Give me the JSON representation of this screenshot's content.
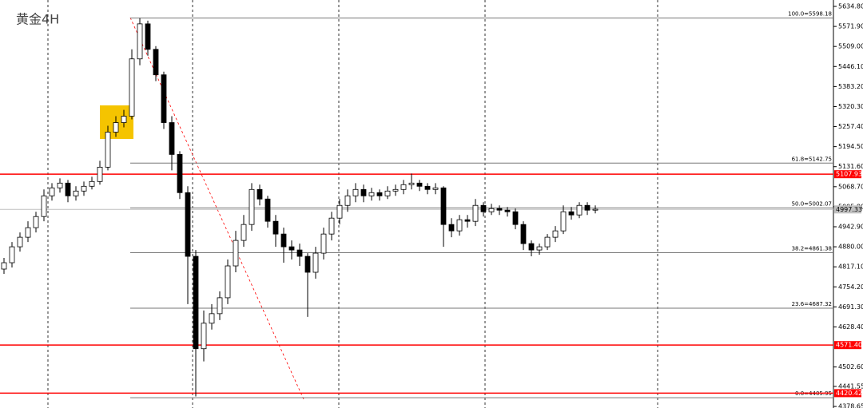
{
  "chart_data": {
    "type": "candlestick",
    "title": "黄金4H",
    "up_color": "#ffffff",
    "down_color": "#000000",
    "ylim": [
      4373.8,
      5654.9
    ],
    "yticks": [
      {
        "value": 5634.8,
        "label": "5634.80"
      },
      {
        "value": 5571.9,
        "label": "5571.90"
      },
      {
        "value": 5509,
        "label": "5509.00"
      },
      {
        "value": 5446.1,
        "label": "5446.10"
      },
      {
        "value": 5383.2,
        "label": "5383.20"
      },
      {
        "value": 5320.3,
        "label": "5320.30"
      },
      {
        "value": 5257.4,
        "label": "5257.40"
      },
      {
        "value": 5194.5,
        "label": "5194.50"
      },
      {
        "value": 5131.6,
        "label": "5131.60"
      },
      {
        "value": 5068.7,
        "label": "5068.70"
      },
      {
        "value": 5005.8,
        "label": "5005.80"
      },
      {
        "value": 4942.9,
        "label": "4942.90"
      },
      {
        "value": 4880,
        "label": "4880.00"
      },
      {
        "value": 4817.1,
        "label": "4817.10"
      },
      {
        "value": 4754.2,
        "label": "4754.20"
      },
      {
        "value": 4691.3,
        "label": "4691.30"
      },
      {
        "value": 4628.4,
        "label": "4628.40"
      },
      {
        "value": 4502.6,
        "label": "4502.60"
      },
      4441.55,
      4378.65
    ],
    "open": [
      4810,
      4830,
      4880,
      4910,
      4940,
      4975,
      5040,
      5065,
      5080,
      5040,
      5055,
      5070,
      5085,
      5130,
      5240,
      5270,
      5290,
      5470,
      5580,
      5500,
      5420,
      5270,
      5170,
      5050,
      4850,
      4560,
      4640,
      4670,
      4720,
      4820,
      4900,
      4950,
      5060,
      5030,
      4960,
      4920,
      4880,
      4870,
      4850,
      4800,
      4860,
      4920,
      4970,
      5010,
      5040,
      5060,
      5040,
      5050,
      5040,
      5055,
      5060,
      5075,
      5080,
      5070,
      5060,
      5065,
      4950,
      4930,
      4965,
      4960,
      5010,
      4990,
      5000,
      4995,
      4990,
      4950,
      4890,
      4870,
      4880,
      4910,
      4930,
      4990,
      4980,
      5010,
      4995
    ],
    "high": [
      4845,
      4895,
      4925,
      4960,
      4990,
      5060,
      5080,
      5095,
      5090,
      5070,
      5085,
      5100,
      5150,
      5260,
      5290,
      5310,
      5500,
      5598,
      5590,
      5510,
      5430,
      5290,
      5180,
      5070,
      4870,
      4680,
      4700,
      4740,
      4840,
      4930,
      4980,
      5080,
      5075,
      5040,
      4980,
      4940,
      4900,
      4890,
      4860,
      4880,
      4940,
      4990,
      5030,
      5060,
      5080,
      5075,
      5065,
      5060,
      5070,
      5075,
      5090,
      5110,
      5090,
      5080,
      5080,
      5070,
      4970,
      4980,
      4980,
      5030,
      5020,
      5015,
      5010,
      5005,
      5000,
      4960,
      4900,
      4890,
      4920,
      4945,
      5010,
      5005,
      5020,
      5020,
      5010
    ],
    "low": [
      4795,
      4815,
      4865,
      4895,
      4925,
      4960,
      5025,
      5050,
      5020,
      5025,
      5040,
      5060,
      5075,
      5120,
      5225,
      5255,
      5280,
      5450,
      5480,
      5400,
      5250,
      5120,
      5030,
      4700,
      4410,
      4520,
      4620,
      4650,
      4700,
      4800,
      4880,
      4930,
      5010,
      4940,
      4880,
      4830,
      4840,
      4820,
      4660,
      4780,
      4840,
      4900,
      4950,
      4990,
      5020,
      5020,
      5025,
      5025,
      5030,
      5040,
      5045,
      5060,
      5055,
      5045,
      5045,
      4880,
      4910,
      4915,
      4940,
      4945,
      4975,
      4980,
      4980,
      4975,
      4935,
      4870,
      4850,
      4855,
      4870,
      4895,
      4920,
      4965,
      4970,
      4980,
      4985
    ],
    "close": [
      4830,
      4880,
      4910,
      4940,
      4975,
      5040,
      5065,
      5080,
      5040,
      5055,
      5070,
      5085,
      5130,
      5240,
      5270,
      5290,
      5470,
      5580,
      5500,
      5420,
      5270,
      5170,
      5050,
      4850,
      4560,
      4640,
      4670,
      4720,
      4820,
      4900,
      4950,
      5060,
      5030,
      4960,
      4920,
      4880,
      4870,
      4850,
      4800,
      4860,
      4920,
      4970,
      5010,
      5040,
      5060,
      5040,
      5050,
      5040,
      5055,
      5060,
      5075,
      5080,
      5070,
      5060,
      5065,
      4950,
      4930,
      4965,
      4960,
      5010,
      4990,
      5000,
      4995,
      4990,
      4950,
      4890,
      4870,
      4880,
      4910,
      4930,
      4990,
      4980,
      5010,
      4995,
      4998
    ],
    "fib_levels": [
      {
        "value": 5598.18,
        "label": "100.0=5598.18"
      },
      {
        "value": 5142.75,
        "label": "61.8=5142.75"
      },
      {
        "value": 5002.07,
        "label": "50.0=5002.07"
      },
      {
        "value": 4861.38,
        "label": "38.2=4861.38"
      },
      {
        "value": 4687.32,
        "label": "23.6=4687.32"
      },
      {
        "value": 4405.95,
        "label": "0.0=4405.95"
      }
    ],
    "level_color": "#ff0000",
    "levels": [
      {
        "value": 5107.93,
        "label": "5107.93"
      },
      {
        "value": 4571.4,
        "label": "4571.40"
      },
      {
        "value": 4420.42,
        "label": "4420.42"
      }
    ],
    "current_price": {
      "value": 4997.33,
      "label": "4997.33"
    }
  }
}
